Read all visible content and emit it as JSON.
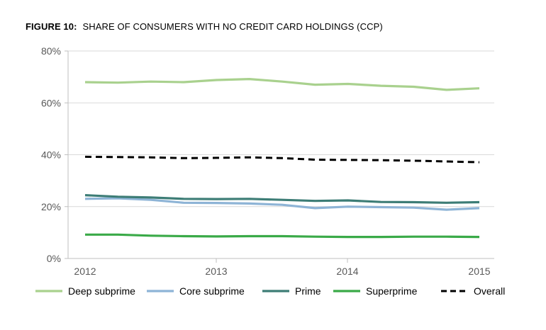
{
  "title": {
    "prefix": "FIGURE 10:",
    "text": "SHARE OF CONSUMERS WITH NO CREDIT CARD HOLDINGS (CCP)"
  },
  "chart_data": {
    "type": "line",
    "title": "FIGURE 10: SHARE OF CONSUMERS WITH NO CREDIT CARD HOLDINGS (CCP)",
    "x": [
      2012.0,
      2012.25,
      2012.5,
      2012.75,
      2013.0,
      2013.25,
      2013.5,
      2013.75,
      2014.0,
      2014.25,
      2014.5,
      2014.75,
      2015.0
    ],
    "x_ticks": [
      "2012",
      "2013",
      "2014",
      "2015"
    ],
    "x_tick_values": [
      2012,
      2013,
      2014,
      2015
    ],
    "ylim": [
      0,
      80
    ],
    "y_ticks": [
      "0%",
      "20%",
      "40%",
      "60%",
      "80%"
    ],
    "y_tick_values": [
      0,
      20,
      40,
      60,
      80
    ],
    "grid": true,
    "legend_position": "bottom",
    "series": [
      {
        "name": "Deep subprime",
        "color": "#a9d18e",
        "dash": "solid",
        "values": [
          68.0,
          67.8,
          68.2,
          68.0,
          68.8,
          69.2,
          68.2,
          67.0,
          67.3,
          66.6,
          66.2,
          65.0,
          65.6
        ]
      },
      {
        "name": "Core subprime",
        "color": "#8eb4d6",
        "dash": "solid",
        "values": [
          23.0,
          23.2,
          22.6,
          21.5,
          21.4,
          21.2,
          20.7,
          19.4,
          20.0,
          19.8,
          19.6,
          18.8,
          19.4
        ]
      },
      {
        "name": "Prime",
        "color": "#3d7d76",
        "dash": "solid",
        "values": [
          24.4,
          23.8,
          23.5,
          23.0,
          22.9,
          23.0,
          22.6,
          22.2,
          22.4,
          21.8,
          21.7,
          21.5,
          21.7
        ]
      },
      {
        "name": "Superprime",
        "color": "#3aaa48",
        "dash": "solid",
        "values": [
          9.2,
          9.2,
          8.8,
          8.6,
          8.5,
          8.6,
          8.6,
          8.4,
          8.3,
          8.3,
          8.4,
          8.4,
          8.3
        ]
      },
      {
        "name": "Overall",
        "color": "#000000",
        "dash": "dashed",
        "values": [
          39.2,
          39.1,
          39.0,
          38.7,
          38.8,
          39.0,
          38.7,
          38.1,
          38.0,
          37.9,
          37.7,
          37.4,
          37.1
        ]
      }
    ]
  }
}
